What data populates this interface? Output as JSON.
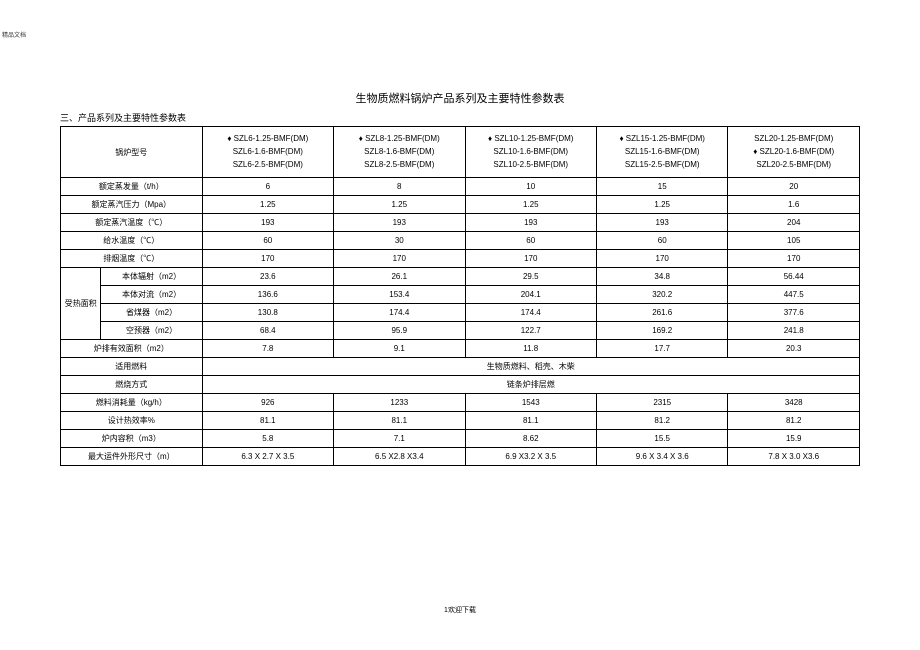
{
  "watermark_tl": "精品文档",
  "title": "生物质燃料锅炉产品系列及主要特性参数表",
  "section_label": "三、产品系列及主要特性参数表",
  "header_label": "锅炉型号",
  "models": [
    [
      "♦ SZL6-1.25-BMF(DM)",
      "SZL6-1.6-BMF(DM)",
      "SZL6-2.5-BMF(DM)"
    ],
    [
      "♦ SZL8-1.25-BMF(DM)",
      "SZL8-1.6-BMF(DM)",
      "SZL8-2.5-BMF(DM)"
    ],
    [
      "♦ SZL10-1.25-BMF(DM)",
      "SZL10-1.6-BMF(DM)",
      "SZL10-2.5-BMF(DM)"
    ],
    [
      "♦ SZL15-1.25-BMF(DM)",
      "SZL15-1.6-BMF(DM)",
      "SZL15-2.5-BMF(DM)"
    ],
    [
      "SZL20-1.25-BMF(DM)",
      "♦ SZL20-1.6-BMF(DM)",
      "SZL20-2.5-BMF(DM)"
    ]
  ],
  "rows_simple": [
    {
      "label": "额定蒸发量（t/h）",
      "v": [
        "6",
        "8",
        "10",
        "15",
        "20"
      ]
    },
    {
      "label": "额定蒸汽压力（Mpa）",
      "v": [
        "1.25",
        "1.25",
        "1.25",
        "1.25",
        "1.6"
      ]
    },
    {
      "label": "额定蒸汽温度（℃）",
      "v": [
        "193",
        "193",
        "193",
        "193",
        "204"
      ]
    },
    {
      "label": "给水温度（℃）",
      "v": [
        "60",
        "30",
        "60",
        "60",
        "105"
      ]
    },
    {
      "label": "排烟温度（℃）",
      "v": [
        "170",
        "170",
        "170",
        "170",
        "170"
      ]
    }
  ],
  "heat_group_label": "受热面积",
  "heat_rows": [
    {
      "label": "本体辐射（m2）",
      "v": [
        "23.6",
        "26.1",
        "29.5",
        "34.8",
        "56.44"
      ]
    },
    {
      "label": "本体对流（m2）",
      "v": [
        "136.6",
        "153.4",
        "204.1",
        "320.2",
        "447.5"
      ]
    },
    {
      "label": "省煤器（m2）",
      "v": [
        "130.8",
        "174.4",
        "174.4",
        "261.6",
        "377.6"
      ]
    },
    {
      "label": "空预器（m2）",
      "v": [
        "68.4",
        "95.9",
        "122.7",
        "169.2",
        "241.8"
      ]
    }
  ],
  "grate_row": {
    "label": "炉排有效面积（m2）",
    "v": [
      "7.8",
      "9.1",
      "11.8",
      "17.7",
      "20.3"
    ]
  },
  "fuel_row": {
    "label": "适用燃料",
    "span_value": "生物质燃料、稻壳、木柴"
  },
  "burn_row": {
    "label": "燃烧方式",
    "span_value": "链条炉排层燃"
  },
  "rows_simple2": [
    {
      "label": "燃料消耗量（kg/h）",
      "v": [
        "926",
        "1233",
        "1543",
        "2315",
        "3428"
      ]
    },
    {
      "label": "设计热效率%",
      "v": [
        "81.1",
        "81.1",
        "81.1",
        "81.2",
        "81.2"
      ]
    },
    {
      "label": "炉内容积（m3）",
      "v": [
        "5.8",
        "7.1",
        "8.62",
        "15.5",
        "15.9"
      ]
    },
    {
      "label": "最大运件外形尺寸（m）",
      "v": [
        "6.3 X 2.7 X 3.5",
        "6.5 X2.8 X3.4",
        "6.9 X3.2 X 3.5",
        "9.6 X 3.4 X 3.6",
        "7.8 X 3.0 X3.6"
      ]
    }
  ],
  "footer": "1欢迎下载",
  "colors": {
    "border": "#000000",
    "text": "#000000",
    "bg": "#ffffff"
  }
}
